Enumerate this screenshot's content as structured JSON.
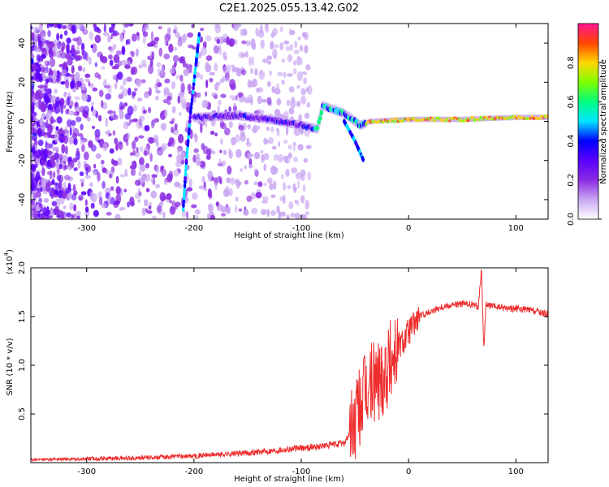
{
  "title": "C2E1.2025.055.13.42.G02",
  "chart_data": [
    {
      "type": "heatmap",
      "xlabel": "Height of straight line (km)",
      "ylabel": "Frequency (Hz)",
      "xlim": [
        -352,
        130
      ],
      "ylim": [
        -50,
        50
      ],
      "x_ticks": [
        -300,
        -200,
        -100,
        0,
        100
      ],
      "x_tick_labels": [
        "-300",
        "-200",
        "-100",
        "0",
        "100"
      ],
      "y_ticks": [
        -40,
        -20,
        0,
        20,
        40
      ],
      "y_tick_labels": [
        "-40",
        "-20",
        "0",
        "20",
        "40"
      ],
      "colorbar": {
        "label": "Normalized spectral amplitude",
        "range": [
          0,
          1
        ],
        "ticks": [
          0.0,
          0.2,
          0.4,
          0.6,
          0.8
        ],
        "tick_labels": [
          "0.0",
          "0.2",
          "0.4",
          "0.6",
          "0.8"
        ],
        "colors": [
          "#ffffff",
          "#c9a6f2",
          "#8a2be2",
          "#5a00ff",
          "#0000ff",
          "#00e5ff",
          "#00ff7f",
          "#7fff00",
          "#ffd700",
          "#ff4500",
          "#ff1493"
        ]
      },
      "ridge": [
        {
          "x": -200,
          "y": 2
        },
        {
          "x": -160,
          "y": 3
        },
        {
          "x": -130,
          "y": 1
        },
        {
          "x": -100,
          "y": -2
        },
        {
          "x": -85,
          "y": -4
        },
        {
          "x": -80,
          "y": 8
        },
        {
          "x": -60,
          "y": 4
        },
        {
          "x": -45,
          "y": -2
        },
        {
          "x": -35,
          "y": 0
        },
        {
          "x": 0,
          "y": 1
        },
        {
          "x": 50,
          "y": 1
        },
        {
          "x": 100,
          "y": 2
        },
        {
          "x": 130,
          "y": 2
        }
      ],
      "branches": [
        {
          "points": [
            {
              "x": -210,
              "y": -45
            },
            {
              "x": -207,
              "y": -20
            },
            {
              "x": -203,
              "y": 5
            },
            {
              "x": -198,
              "y": 30
            },
            {
              "x": -195,
              "y": 45
            }
          ]
        },
        {
          "points": [
            {
              "x": -60,
              "y": 0
            },
            {
              "x": -50,
              "y": -10
            },
            {
              "x": -42,
              "y": -20
            }
          ]
        }
      ]
    },
    {
      "type": "line",
      "xlabel": "Height of straight line (km)",
      "ylabel": "SNR (10 * v/v)",
      "y_multiplier_label": "(x10",
      "y_multiplier_exp": "4",
      "xlim": [
        -352,
        130
      ],
      "ylim": [
        0,
        20000
      ],
      "x_ticks": [
        -300,
        -200,
        -100,
        0,
        100
      ],
      "x_tick_labels": [
        "-300",
        "-200",
        "-100",
        "0",
        "100"
      ],
      "y_ticks": [
        5000,
        10000,
        15000,
        20000
      ],
      "y_tick_labels": [
        "0.5",
        "1.0",
        "1.5",
        "2.0"
      ],
      "line_color": "#ee2c2c",
      "series": [
        {
          "x": [
            -352,
            -300,
            -250,
            -200,
            -150,
            -120,
            -100,
            -80,
            -60,
            -50,
            -45,
            -40,
            -35,
            -30,
            -25,
            -20,
            -15,
            -10,
            -5,
            0,
            10,
            20,
            30,
            40,
            50,
            60,
            65,
            68,
            70,
            72,
            80,
            90,
            100,
            110,
            120,
            130
          ],
          "y": [
            300,
            400,
            500,
            700,
            1000,
            1300,
            1500,
            1700,
            2000,
            4000,
            6000,
            7000,
            8000,
            8500,
            9000,
            10000,
            11000,
            12000,
            12500,
            13500,
            15000,
            15500,
            16000,
            16200,
            16300,
            16200,
            16000,
            20000,
            11500,
            16200,
            16000,
            15900,
            15800,
            15700,
            15500,
            15200
          ]
        }
      ]
    }
  ]
}
